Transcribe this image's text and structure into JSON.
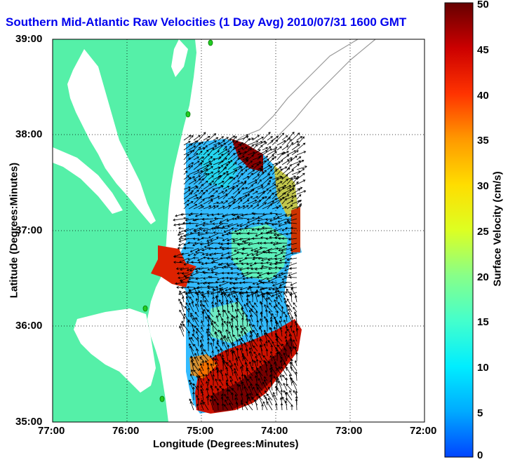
{
  "title": "Southern Mid-Atlantic Raw Velocities (1 Day Avg) 2010/07/31 1600 GMT",
  "axes": {
    "xlabel": "Longitude (Degrees:Minutes)",
    "ylabel": "Latitude (Degrees:Minutes)",
    "xticks": [
      "77:00",
      "76:00",
      "75:00",
      "74:00",
      "73:00",
      "72:00"
    ],
    "yticks": [
      "39:00",
      "38:00",
      "37:00",
      "36:00",
      "35:00"
    ]
  },
  "colorbar": {
    "label": "Surface Velocity (cm/s)",
    "min": 0,
    "max": 50,
    "ticks": [
      "50",
      "45",
      "40",
      "35",
      "30",
      "25",
      "20",
      "15",
      "10",
      "5",
      "0"
    ],
    "stops": [
      "#0044ff",
      "#00ccff",
      "#22ffdd",
      "#66ff99",
      "#ccff33",
      "#ffff00",
      "#ffbb00",
      "#ff6600",
      "#ee1100",
      "#aa0000",
      "#660000"
    ]
  },
  "colors": {
    "land": "#55f0a8",
    "contour": "#999999",
    "vectors": "#000000",
    "stations": "#22cc22"
  }
}
